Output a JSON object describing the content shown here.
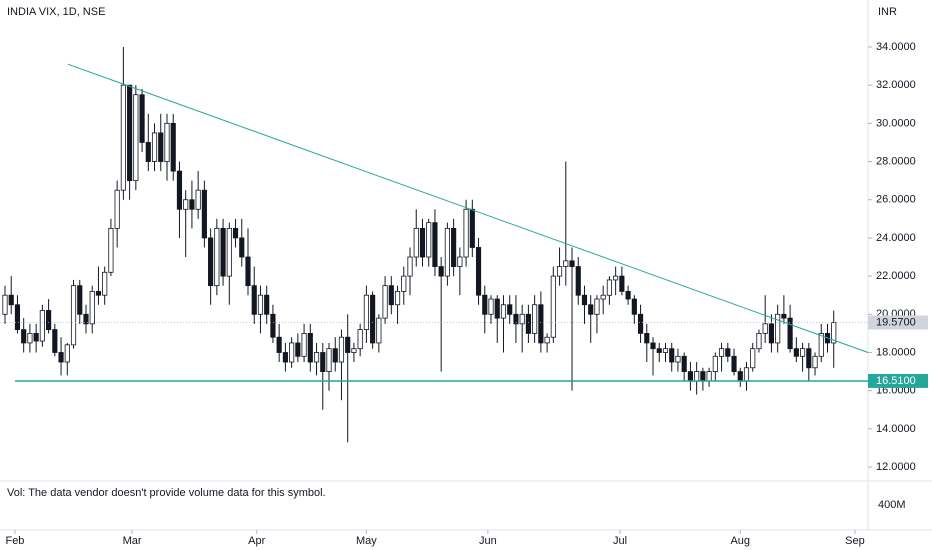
{
  "chart_data": {
    "type": "candlestick",
    "title": "INDIA VIX, 1D, NSE",
    "y_axis_label": "INR",
    "volume_note": "Vol: The data vendor doesn't provide volume data for this symbol.",
    "volume_axis_label": "400M",
    "up_color": "#ffffff",
    "down_color": "#131722",
    "line_color": "#26a69a",
    "open": [
      20.0,
      21.0,
      20.5,
      19.2,
      18.5,
      19.0,
      18.6,
      20.2,
      19.2,
      18.0,
      17.5,
      18.4,
      21.5,
      20.0,
      19.5,
      21.2,
      21.0,
      22.2,
      24.5,
      26.5,
      32.0,
      27.0,
      31.5,
      29.0,
      28.0,
      29.5,
      28.0,
      30.0,
      27.5,
      25.5,
      26.0,
      25.5,
      26.5,
      24.0,
      21.5,
      24.5,
      22.0,
      24.5,
      24.0,
      23.0,
      21.5,
      20.0,
      21.0,
      20.0,
      18.8,
      18.0,
      17.5,
      18.5,
      17.8,
      19.0,
      17.5,
      18.0,
      17.0,
      18.2,
      17.5,
      18.8,
      18.0,
      18.2,
      19.2,
      21.0,
      18.5,
      19.8,
      21.5,
      20.5,
      21.2,
      22.0,
      23.0,
      24.5,
      23.0,
      24.8,
      22.5,
      22.0,
      24.5,
      22.5,
      23.0,
      25.5,
      23.5,
      21.0,
      20.0,
      20.8,
      19.8,
      20.5,
      20.0,
      19.5,
      20.0,
      19.0,
      20.5,
      18.5,
      18.8,
      22.0,
      22.5,
      22.8,
      22.5,
      21.0,
      20.5,
      20.0,
      20.8,
      21.0,
      21.8,
      22.0,
      21.2,
      20.8,
      20.0,
      19.0,
      18.5,
      18.2,
      18.0,
      18.2,
      17.5,
      17.8,
      17.0,
      16.5,
      17.0,
      16.5,
      17.0,
      17.8,
      18.2,
      17.8,
      17.0,
      16.5,
      17.2,
      18.2,
      19.0,
      19.5,
      18.5,
      20.0,
      19.8,
      18.2,
      17.8,
      18.2,
      17.2,
      17.8,
      19.0,
      18.5
    ],
    "high": [
      21.5,
      22.0,
      21.0,
      19.8,
      19.5,
      19.5,
      20.5,
      20.8,
      19.5,
      18.8,
      18.5,
      21.8,
      21.8,
      20.5,
      21.5,
      22.5,
      22.5,
      25.0,
      27.0,
      34.0,
      32.0,
      32.0,
      31.8,
      30.5,
      30.0,
      30.5,
      30.5,
      30.5,
      28.0,
      26.5,
      27.0,
      27.5,
      27.0,
      24.5,
      25.0,
      25.0,
      24.8,
      25.0,
      25.0,
      24.5,
      22.5,
      21.5,
      21.5,
      20.5,
      19.5,
      18.5,
      18.8,
      19.0,
      19.5,
      19.5,
      18.5,
      18.5,
      18.5,
      18.8,
      19.2,
      20.0,
      18.5,
      19.5,
      21.5,
      21.2,
      20.0,
      22.0,
      22.0,
      21.5,
      22.5,
      23.5,
      25.5,
      25.0,
      25.0,
      25.5,
      23.0,
      24.8,
      25.0,
      23.5,
      26.0,
      26.0,
      24.0,
      21.5,
      21.0,
      21.0,
      21.0,
      21.0,
      21.0,
      20.5,
      20.5,
      21.0,
      21.2,
      19.0,
      22.5,
      23.5,
      28.0,
      23.5,
      23.0,
      21.5,
      21.0,
      21.0,
      21.5,
      22.0,
      22.5,
      22.5,
      21.5,
      21.0,
      20.5,
      19.5,
      18.8,
      18.5,
      18.5,
      18.5,
      18.2,
      18.0,
      17.5,
      17.5,
      17.2,
      17.2,
      18.0,
      18.5,
      18.5,
      18.2,
      17.2,
      17.5,
      18.5,
      19.2,
      21.0,
      20.0,
      20.5,
      21.0,
      20.5,
      18.8,
      18.5,
      18.5,
      18.0,
      19.5,
      19.5,
      20.2
    ],
    "low": [
      19.5,
      20.0,
      19.0,
      18.0,
      18.0,
      18.0,
      18.3,
      19.0,
      17.8,
      16.8,
      16.8,
      18.2,
      19.5,
      19.0,
      19.0,
      20.5,
      20.5,
      22.0,
      23.5,
      26.0,
      26.0,
      26.5,
      28.5,
      27.5,
      27.5,
      27.5,
      27.0,
      27.0,
      24.0,
      23.0,
      24.5,
      25.0,
      23.5,
      20.5,
      21.0,
      21.5,
      20.5,
      23.5,
      22.5,
      21.0,
      19.5,
      19.0,
      19.5,
      18.5,
      17.5,
      17.0,
      17.2,
      17.5,
      17.5,
      17.0,
      16.8,
      15.0,
      16.0,
      17.0,
      15.5,
      13.3,
      17.5,
      17.8,
      18.5,
      18.2,
      18.0,
      19.5,
      20.0,
      19.5,
      20.5,
      21.0,
      22.5,
      22.5,
      22.5,
      22.0,
      17.0,
      21.5,
      22.0,
      21.0,
      22.5,
      23.0,
      20.5,
      19.0,
      19.5,
      18.5,
      18.0,
      19.5,
      18.5,
      18.0,
      18.5,
      18.5,
      18.0,
      18.0,
      18.5,
      21.5,
      21.5,
      16.0,
      20.5,
      19.5,
      18.5,
      19.0,
      20.0,
      20.5,
      21.0,
      21.0,
      20.5,
      19.5,
      18.5,
      17.5,
      16.8,
      17.5,
      17.5,
      17.0,
      17.0,
      16.5,
      16.0,
      15.8,
      16.0,
      16.2,
      16.5,
      17.0,
      17.5,
      16.8,
      16.2,
      16.0,
      17.0,
      18.0,
      18.5,
      18.0,
      18.0,
      19.5,
      18.0,
      17.5,
      17.0,
      16.5,
      16.8,
      17.5,
      18.0,
      17.2
    ],
    "close": [
      21.0,
      20.5,
      19.2,
      18.5,
      19.0,
      18.6,
      20.2,
      19.2,
      18.0,
      17.5,
      18.4,
      21.5,
      20.0,
      19.5,
      21.2,
      21.0,
      22.2,
      24.5,
      26.5,
      32.0,
      27.0,
      31.5,
      29.0,
      28.0,
      29.5,
      28.0,
      30.0,
      27.5,
      25.5,
      26.0,
      25.5,
      26.5,
      24.0,
      21.5,
      24.5,
      22.0,
      24.5,
      24.0,
      23.0,
      21.5,
      20.0,
      21.0,
      20.0,
      18.8,
      18.0,
      17.5,
      18.5,
      17.8,
      19.0,
      17.5,
      18.0,
      17.0,
      18.2,
      17.5,
      18.8,
      18.0,
      18.2,
      19.2,
      21.0,
      18.5,
      19.8,
      21.5,
      20.5,
      21.2,
      22.0,
      23.0,
      24.5,
      23.0,
      24.8,
      22.5,
      22.0,
      24.5,
      22.5,
      23.0,
      25.5,
      23.5,
      21.0,
      20.0,
      20.8,
      19.8,
      20.5,
      20.0,
      19.5,
      20.0,
      19.0,
      20.5,
      18.5,
      18.8,
      22.0,
      22.5,
      22.8,
      22.5,
      21.0,
      20.5,
      20.0,
      20.8,
      21.0,
      21.8,
      22.0,
      21.2,
      20.8,
      20.0,
      19.0,
      18.5,
      18.2,
      18.0,
      18.2,
      17.5,
      17.8,
      17.0,
      16.5,
      17.0,
      16.5,
      17.0,
      17.8,
      18.2,
      17.8,
      17.0,
      16.5,
      17.2,
      18.2,
      19.0,
      19.5,
      18.5,
      20.0,
      19.8,
      18.2,
      17.8,
      18.2,
      17.2,
      17.8,
      19.0,
      18.5,
      19.57
    ],
    "xlim": [
      -0.8,
      138.5
    ],
    "xticks": [
      {
        "value": 1.6,
        "label": "Feb"
      },
      {
        "value": 20.4,
        "label": "Mar"
      },
      {
        "value": 40.4,
        "label": "Apr"
      },
      {
        "value": 58,
        "label": "May"
      },
      {
        "value": 77.5,
        "label": "Jun"
      },
      {
        "value": 98.7,
        "label": "Jul"
      },
      {
        "value": 118,
        "label": "Aug"
      },
      {
        "value": 136.4,
        "label": "Sep"
      }
    ],
    "ylim": [
      11.27,
      36.46
    ],
    "yticks": [
      {
        "value": 12,
        "label": "12.0000"
      },
      {
        "value": 14,
        "label": "14.0000"
      },
      {
        "value": 16,
        "label": "16.0000"
      },
      {
        "value": 18,
        "label": "18.0000"
      },
      {
        "value": 20,
        "label": "20.0000"
      },
      {
        "value": 22,
        "label": "22.0000"
      },
      {
        "value": 24,
        "label": "24.0000"
      },
      {
        "value": 26,
        "label": "26.0000"
      },
      {
        "value": 28,
        "label": "28.0000"
      },
      {
        "value": 30,
        "label": "30.0000"
      },
      {
        "value": 32,
        "label": "32.0000"
      },
      {
        "value": 34,
        "label": "34.0000"
      }
    ],
    "trendline": {
      "x": [
        10.1,
        138.5
      ],
      "y": [
        33.1,
        18.0
      ]
    },
    "support_level": {
      "value": 16.51,
      "label": "16.5100"
    },
    "last_price": {
      "value": 19.57,
      "label": "19.5700"
    }
  }
}
